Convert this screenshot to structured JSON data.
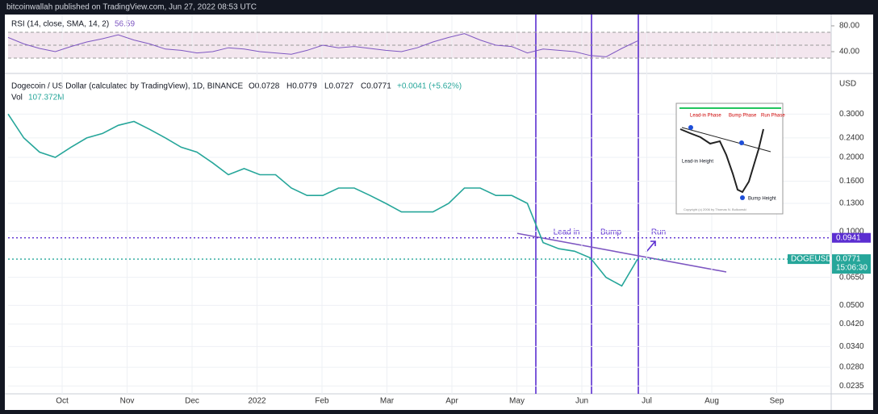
{
  "header": {
    "publisher": "bitcoinwallah published on TradingView.com, Jun 27, 2022 08:53 UTC"
  },
  "chart_data": [
    {
      "type": "line",
      "title": "RSI (14, close, SMA, 14, 2)",
      "last_value": "56.59",
      "color": "#7e57c2",
      "categories": [
        null,
        null,
        null,
        null,
        null,
        null,
        null,
        null,
        null,
        null,
        null,
        null,
        null,
        null,
        null,
        null,
        null,
        null,
        null,
        null,
        null,
        null,
        null,
        null,
        null,
        null,
        null,
        null,
        null,
        null,
        null,
        null,
        null,
        null,
        null,
        null,
        null,
        null,
        null,
        null,
        null
      ],
      "values": [
        62,
        52,
        45,
        40,
        48,
        55,
        60,
        66,
        58,
        52,
        44,
        42,
        38,
        40,
        46,
        44,
        40,
        38,
        36,
        42,
        50,
        46,
        48,
        45,
        42,
        40,
        46,
        55,
        62,
        68,
        58,
        50,
        48,
        38,
        44,
        42,
        40,
        34,
        32,
        45,
        56.59
      ],
      "ylim": [
        17.5,
        92.5
      ],
      "yticks": [
        {
          "value": 80,
          "label": "80.00"
        },
        {
          "value": 40,
          "label": "40.00"
        }
      ],
      "levels": [
        70,
        50,
        30
      ]
    },
    {
      "type": "line",
      "title": "Dogecoin / US Dollar (calculated by TradingView), 1D, BINANCE",
      "ohlc": [
        "O0.0728",
        "H0.0779",
        "L0.0727",
        "C0.0771",
        "+0.0041 (+5.62%)"
      ],
      "volume_title": "Vol",
      "volume_value": "107.372M",
      "axis_label": "USD",
      "log_scale": true,
      "grid": true,
      "color": "#26a69a",
      "categories": [
        null,
        null,
        null,
        null,
        null,
        null,
        null,
        null,
        null,
        null,
        null,
        null,
        null,
        null,
        null,
        null,
        null,
        null,
        null,
        null,
        null,
        null,
        null,
        null,
        null,
        null,
        null,
        null,
        null,
        null,
        null,
        null,
        null,
        null,
        null,
        null,
        null,
        null,
        null,
        null,
        null
      ],
      "values": [
        0.3,
        0.24,
        0.21,
        0.2,
        0.22,
        0.24,
        0.25,
        0.27,
        0.28,
        0.26,
        0.24,
        0.22,
        0.21,
        0.19,
        0.17,
        0.18,
        0.17,
        0.17,
        0.15,
        0.14,
        0.14,
        0.15,
        0.15,
        0.14,
        0.13,
        0.12,
        0.12,
        0.12,
        0.13,
        0.15,
        0.15,
        0.14,
        0.14,
        0.13,
        0.09,
        0.085,
        0.083,
        0.078,
        0.065,
        0.06,
        0.0771
      ],
      "ylim": [
        0.022,
        0.41
      ],
      "yticks": [
        {
          "value": 0.3,
          "label": "0.3000"
        },
        {
          "value": 0.24,
          "label": "0.2400"
        },
        {
          "value": 0.2,
          "label": "0.2000"
        },
        {
          "value": 0.16,
          "label": "0.1600"
        },
        {
          "value": 0.13,
          "label": "0.1300"
        },
        {
          "value": 0.1,
          "label": "0.1000"
        },
        {
          "value": 0.065,
          "label": "0.0650"
        },
        {
          "value": 0.05,
          "label": "0.0500"
        },
        {
          "value": 0.042,
          "label": "0.0420"
        },
        {
          "value": 0.034,
          "label": "0.0340"
        },
        {
          "value": 0.028,
          "label": "0.0280"
        },
        {
          "value": 0.0235,
          "label": "0.0235"
        }
      ],
      "months": [
        "Oct",
        "Nov",
        "Dec",
        "2022",
        "Feb",
        "Mar",
        "Apr",
        "May",
        "Jun",
        "Jul",
        "Aug",
        "Sep"
      ],
      "price_lines": [
        {
          "value": 0.0941,
          "label": "0.0941",
          "color": "#5b2ed1"
        },
        {
          "value": 0.0771,
          "label": "0.0771",
          "symbol": "DOGEUSD",
          "countdown": "15:06:30",
          "color": "#26a69a"
        }
      ],
      "annotations": [
        "Lead in",
        "Bump",
        "Run"
      ],
      "inset": {
        "labels": [
          "Lead-in Phase",
          "Bump Phase",
          "Run Phase",
          "Lead-in Height",
          "Bump Height"
        ],
        "copyright": "Copyright (c) 2006 by Thomas N. Bulkowski"
      }
    }
  ]
}
